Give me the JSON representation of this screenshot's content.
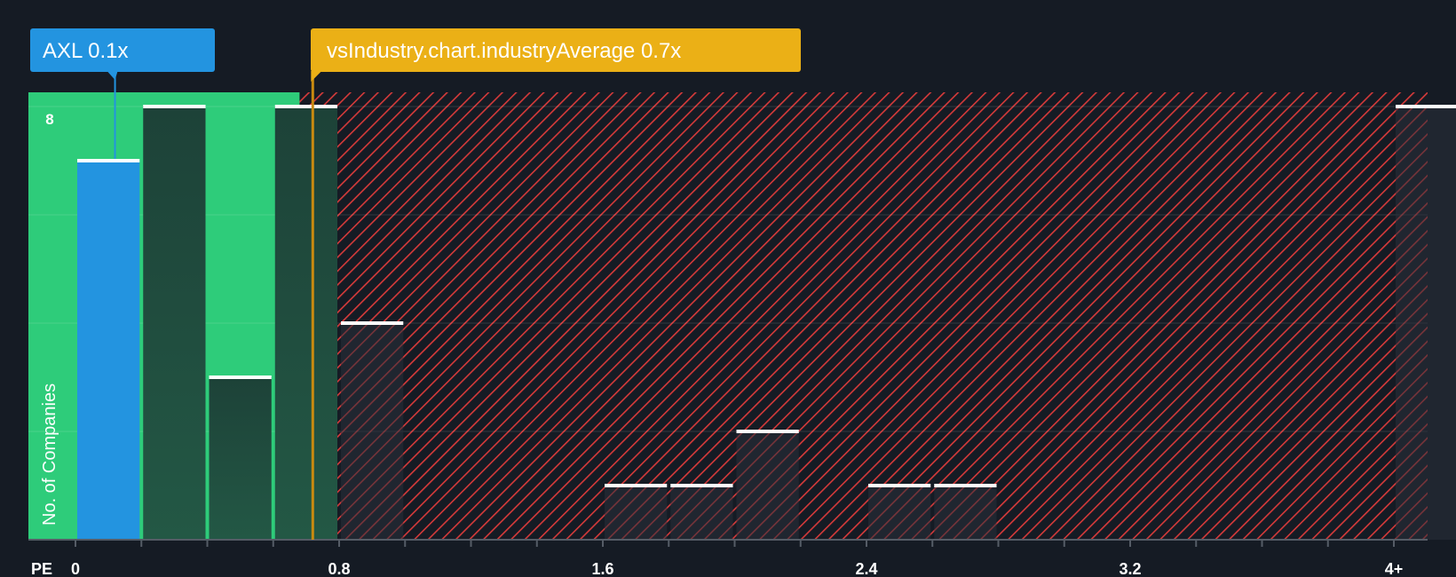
{
  "chart_data": {
    "type": "bar",
    "title": "",
    "xlabel": "PE",
    "ylabel": "No. of Companies",
    "x_ticks": [
      {
        "value": 0,
        "label": "0"
      },
      {
        "value": 0.8,
        "label": "0.8"
      },
      {
        "value": 1.6,
        "label": "1.6"
      },
      {
        "value": 2.4,
        "label": "2.4"
      },
      {
        "value": 3.2,
        "label": "3.2"
      },
      {
        "value": 4.0,
        "label": "4+"
      }
    ],
    "y_ticks": [
      {
        "value": 8,
        "label": "8"
      }
    ],
    "ylim": [
      0,
      8.3
    ],
    "xlim": [
      0,
      4.1
    ],
    "bin_width": 0.2,
    "bins": [
      {
        "start": 0.0,
        "value": 7,
        "highlight": true
      },
      {
        "start": 0.2,
        "value": 8
      },
      {
        "start": 0.4,
        "value": 3
      },
      {
        "start": 0.6,
        "value": 8
      },
      {
        "start": 0.8,
        "value": 4
      },
      {
        "start": 1.6,
        "value": 1
      },
      {
        "start": 1.8,
        "value": 1
      },
      {
        "start": 2.0,
        "value": 2
      },
      {
        "start": 2.4,
        "value": 1
      },
      {
        "start": 2.6,
        "value": 1
      },
      {
        "start": 4.0,
        "value": 8
      }
    ],
    "good_range": [
      0,
      0.68
    ],
    "company": {
      "name": "AXL",
      "value": 0.12,
      "label": "AXL 0.1x"
    },
    "industry_average": {
      "value": 0.72,
      "label": "vsIndustry.chart.industryAverage 0.7x"
    },
    "colors": {
      "background": "#151b24",
      "good_zone": "#2ecc7a",
      "bad_hatch": "#d63a3a",
      "bar_dark": "#1f4a3c",
      "bar_highlight": "#2394e0",
      "bar_top": "#ffffff",
      "callout_company": "#2394e0",
      "callout_industry": "#ebb016",
      "industry_line": "#c98a10",
      "axis": "#555c66"
    }
  }
}
